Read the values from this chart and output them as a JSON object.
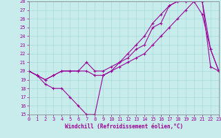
{
  "title": "",
  "xlabel": "Windchill (Refroidissement éolien,°C)",
  "ylabel": "",
  "bg_color": "#c8ecec",
  "grid_color": "#a8d8d8",
  "line_color": "#990099",
  "xlim": [
    0,
    23
  ],
  "ylim": [
    15,
    28
  ],
  "xticks": [
    0,
    1,
    2,
    3,
    4,
    5,
    6,
    7,
    8,
    9,
    10,
    11,
    12,
    13,
    14,
    15,
    16,
    17,
    18,
    19,
    20,
    21,
    22,
    23
  ],
  "yticks": [
    15,
    16,
    17,
    18,
    19,
    20,
    21,
    22,
    23,
    24,
    25,
    26,
    27,
    28
  ],
  "line1_x": [
    0,
    1,
    2,
    3,
    4,
    5,
    6,
    7,
    8,
    9,
    10,
    11,
    12,
    13,
    14,
    15,
    16,
    17,
    18,
    19,
    20,
    21,
    22,
    23
  ],
  "line1_y": [
    20,
    19.5,
    18.5,
    18,
    18,
    17,
    16,
    15,
    15,
    19.5,
    20,
    21,
    21.5,
    22.5,
    23,
    25,
    25.5,
    27.5,
    28,
    28,
    28,
    26.5,
    22.5,
    20
  ],
  "line2_x": [
    0,
    1,
    2,
    3,
    4,
    5,
    6,
    7,
    8,
    9,
    10,
    11,
    12,
    13,
    14,
    15,
    16,
    17,
    18,
    19,
    20,
    21,
    22,
    23
  ],
  "line2_y": [
    20,
    19.5,
    19,
    19.5,
    20,
    20,
    20,
    21,
    20,
    20,
    20.5,
    21,
    22,
    23,
    24,
    25.5,
    26.5,
    27.5,
    28,
    28,
    28,
    28,
    22.5,
    20
  ],
  "line3_x": [
    0,
    1,
    2,
    3,
    4,
    5,
    6,
    7,
    8,
    9,
    10,
    11,
    12,
    13,
    14,
    15,
    16,
    17,
    18,
    19,
    20,
    21,
    22,
    23
  ],
  "line3_y": [
    20,
    19.5,
    19,
    19.5,
    20,
    20,
    20,
    20,
    19.5,
    19.5,
    20,
    20.5,
    21,
    21.5,
    22,
    23,
    24,
    25,
    26,
    27,
    28,
    28,
    20.5,
    20
  ],
  "tick_color": "#990099",
  "label_fontsize": 5.5,
  "tick_fontsize": 5.0
}
